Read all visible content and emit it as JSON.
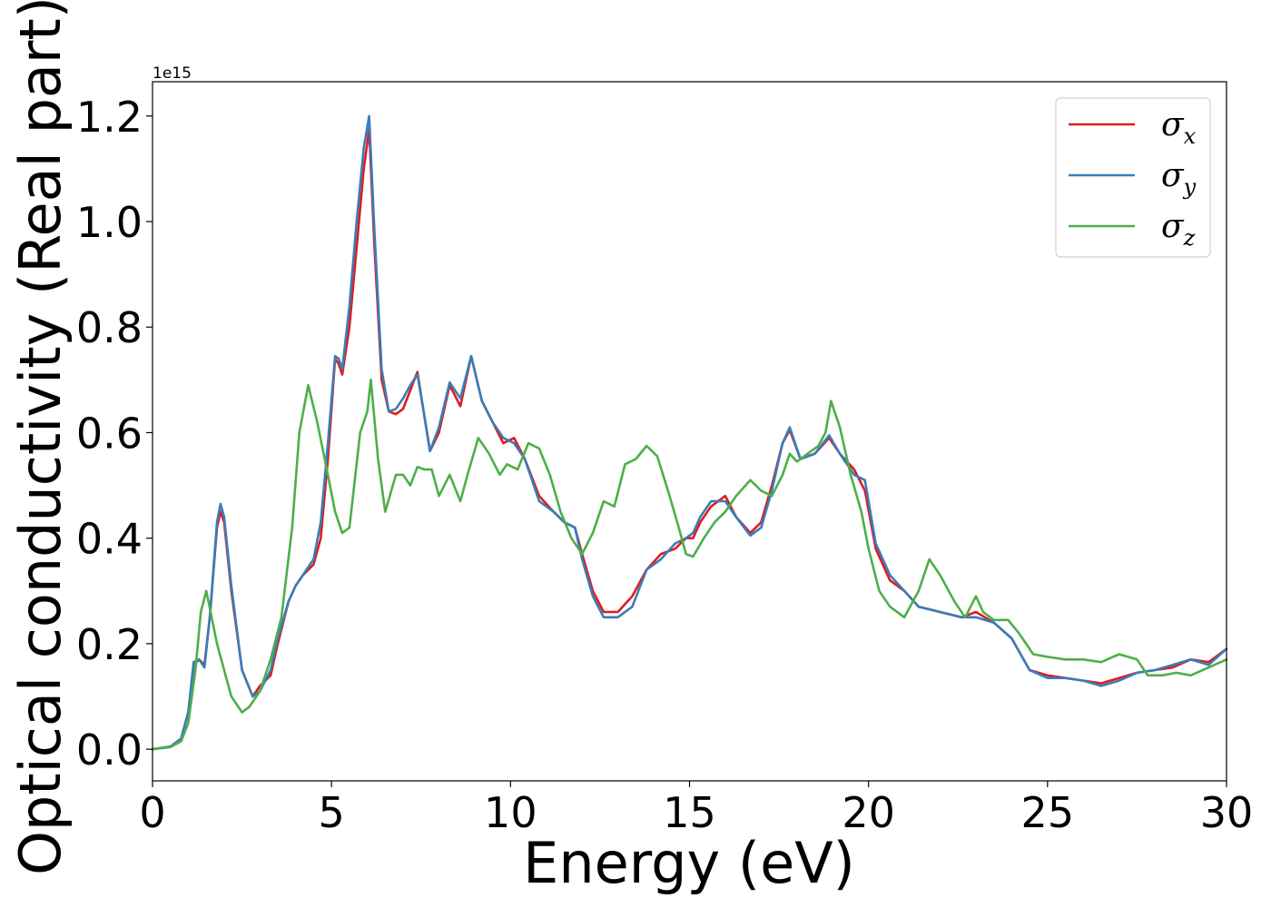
{
  "chart_data": {
    "type": "line",
    "xlabel": "Energy (eV)",
    "ylabel": "Optical conductivity (Real part)",
    "y_offset_label": "1e15",
    "xlim": [
      0,
      30
    ],
    "ylim": [
      -0.06,
      1.265
    ],
    "x_ticks": [
      0,
      5,
      10,
      15,
      20,
      25,
      30
    ],
    "x_tick_labels": [
      "0",
      "5",
      "10",
      "15",
      "20",
      "25",
      "30"
    ],
    "y_ticks": [
      0.0,
      0.2,
      0.4,
      0.6,
      0.8,
      1.0,
      1.2
    ],
    "y_tick_labels": [
      "0.0",
      "0.2",
      "0.4",
      "0.6",
      "0.8",
      "1.0",
      "1.2"
    ],
    "grid": false,
    "legend_position": "top-right",
    "series": [
      {
        "name": "σx",
        "symbol": "σ",
        "subscript": "x",
        "color": "#e41a1c",
        "points": [
          [
            0,
            0
          ],
          [
            0.5,
            0.005
          ],
          [
            0.8,
            0.02
          ],
          [
            1.0,
            0.07
          ],
          [
            1.15,
            0.16
          ],
          [
            1.3,
            0.17
          ],
          [
            1.45,
            0.16
          ],
          [
            1.6,
            0.25
          ],
          [
            1.8,
            0.42
          ],
          [
            1.9,
            0.45
          ],
          [
            2.0,
            0.43
          ],
          [
            2.2,
            0.3
          ],
          [
            2.5,
            0.15
          ],
          [
            2.8,
            0.1
          ],
          [
            3.0,
            0.12
          ],
          [
            3.3,
            0.14
          ],
          [
            3.5,
            0.2
          ],
          [
            3.8,
            0.28
          ],
          [
            4.0,
            0.31
          ],
          [
            4.2,
            0.33
          ],
          [
            4.5,
            0.35
          ],
          [
            4.7,
            0.4
          ],
          [
            4.9,
            0.55
          ],
          [
            5.1,
            0.74
          ],
          [
            5.2,
            0.73
          ],
          [
            5.3,
            0.71
          ],
          [
            5.5,
            0.8
          ],
          [
            5.7,
            0.95
          ],
          [
            5.9,
            1.1
          ],
          [
            6.05,
            1.175
          ],
          [
            6.2,
            0.95
          ],
          [
            6.4,
            0.7
          ],
          [
            6.6,
            0.64
          ],
          [
            6.8,
            0.635
          ],
          [
            7.0,
            0.645
          ],
          [
            7.2,
            0.68
          ],
          [
            7.4,
            0.715
          ],
          [
            7.55,
            0.65
          ],
          [
            7.75,
            0.565
          ],
          [
            8.0,
            0.6
          ],
          [
            8.3,
            0.69
          ],
          [
            8.6,
            0.65
          ],
          [
            8.9,
            0.745
          ],
          [
            9.2,
            0.66
          ],
          [
            9.5,
            0.62
          ],
          [
            9.8,
            0.58
          ],
          [
            10.1,
            0.59
          ],
          [
            10.4,
            0.55
          ],
          [
            10.8,
            0.48
          ],
          [
            11.2,
            0.45
          ],
          [
            11.5,
            0.43
          ],
          [
            11.8,
            0.42
          ],
          [
            12.0,
            0.37
          ],
          [
            12.3,
            0.3
          ],
          [
            12.6,
            0.26
          ],
          [
            13.0,
            0.26
          ],
          [
            13.4,
            0.29
          ],
          [
            13.8,
            0.34
          ],
          [
            14.2,
            0.37
          ],
          [
            14.6,
            0.38
          ],
          [
            14.9,
            0.4
          ],
          [
            15.1,
            0.4
          ],
          [
            15.3,
            0.43
          ],
          [
            15.6,
            0.46
          ],
          [
            16.0,
            0.48
          ],
          [
            16.3,
            0.44
          ],
          [
            16.7,
            0.41
          ],
          [
            17.0,
            0.43
          ],
          [
            17.3,
            0.5
          ],
          [
            17.6,
            0.58
          ],
          [
            17.8,
            0.605
          ],
          [
            18.1,
            0.55
          ],
          [
            18.5,
            0.56
          ],
          [
            18.9,
            0.59
          ],
          [
            19.2,
            0.56
          ],
          [
            19.6,
            0.53
          ],
          [
            19.9,
            0.49
          ],
          [
            20.2,
            0.38
          ],
          [
            20.6,
            0.32
          ],
          [
            21.0,
            0.3
          ],
          [
            21.4,
            0.27
          ],
          [
            22.0,
            0.26
          ],
          [
            22.6,
            0.25
          ],
          [
            23.0,
            0.26
          ],
          [
            23.5,
            0.24
          ],
          [
            24.0,
            0.21
          ],
          [
            24.5,
            0.15
          ],
          [
            25.0,
            0.14
          ],
          [
            25.5,
            0.135
          ],
          [
            26.0,
            0.13
          ],
          [
            26.5,
            0.125
          ],
          [
            27.0,
            0.135
          ],
          [
            27.5,
            0.145
          ],
          [
            28.0,
            0.15
          ],
          [
            28.5,
            0.155
          ],
          [
            29.0,
            0.17
          ],
          [
            29.5,
            0.165
          ],
          [
            30.0,
            0.19
          ]
        ]
      },
      {
        "name": "σy",
        "symbol": "σ",
        "subscript": "y",
        "color": "#377eb8",
        "points": [
          [
            0,
            0
          ],
          [
            0.5,
            0.005
          ],
          [
            0.8,
            0.02
          ],
          [
            1.0,
            0.07
          ],
          [
            1.15,
            0.165
          ],
          [
            1.3,
            0.17
          ],
          [
            1.45,
            0.155
          ],
          [
            1.6,
            0.25
          ],
          [
            1.8,
            0.43
          ],
          [
            1.9,
            0.465
          ],
          [
            2.0,
            0.44
          ],
          [
            2.2,
            0.31
          ],
          [
            2.5,
            0.15
          ],
          [
            2.8,
            0.1
          ],
          [
            3.0,
            0.11
          ],
          [
            3.3,
            0.15
          ],
          [
            3.5,
            0.21
          ],
          [
            3.8,
            0.28
          ],
          [
            4.0,
            0.31
          ],
          [
            4.2,
            0.33
          ],
          [
            4.5,
            0.36
          ],
          [
            4.7,
            0.43
          ],
          [
            4.9,
            0.58
          ],
          [
            5.1,
            0.745
          ],
          [
            5.2,
            0.74
          ],
          [
            5.3,
            0.72
          ],
          [
            5.5,
            0.84
          ],
          [
            5.7,
            1.0
          ],
          [
            5.9,
            1.14
          ],
          [
            6.05,
            1.2
          ],
          [
            6.2,
            0.98
          ],
          [
            6.4,
            0.72
          ],
          [
            6.6,
            0.64
          ],
          [
            6.8,
            0.645
          ],
          [
            7.0,
            0.665
          ],
          [
            7.2,
            0.69
          ],
          [
            7.4,
            0.71
          ],
          [
            7.55,
            0.65
          ],
          [
            7.75,
            0.565
          ],
          [
            8.0,
            0.61
          ],
          [
            8.3,
            0.695
          ],
          [
            8.6,
            0.665
          ],
          [
            8.9,
            0.745
          ],
          [
            9.2,
            0.66
          ],
          [
            9.5,
            0.62
          ],
          [
            9.8,
            0.59
          ],
          [
            10.1,
            0.58
          ],
          [
            10.4,
            0.55
          ],
          [
            10.8,
            0.47
          ],
          [
            11.2,
            0.45
          ],
          [
            11.5,
            0.43
          ],
          [
            11.8,
            0.42
          ],
          [
            12.0,
            0.36
          ],
          [
            12.3,
            0.29
          ],
          [
            12.6,
            0.25
          ],
          [
            13.0,
            0.25
          ],
          [
            13.4,
            0.27
          ],
          [
            13.8,
            0.34
          ],
          [
            14.2,
            0.36
          ],
          [
            14.6,
            0.39
          ],
          [
            14.9,
            0.4
          ],
          [
            15.1,
            0.41
          ],
          [
            15.3,
            0.44
          ],
          [
            15.6,
            0.47
          ],
          [
            16.0,
            0.47
          ],
          [
            16.3,
            0.44
          ],
          [
            16.7,
            0.405
          ],
          [
            17.0,
            0.42
          ],
          [
            17.3,
            0.49
          ],
          [
            17.6,
            0.58
          ],
          [
            17.8,
            0.61
          ],
          [
            18.1,
            0.55
          ],
          [
            18.5,
            0.56
          ],
          [
            18.9,
            0.595
          ],
          [
            19.2,
            0.56
          ],
          [
            19.6,
            0.52
          ],
          [
            19.9,
            0.51
          ],
          [
            20.2,
            0.39
          ],
          [
            20.6,
            0.33
          ],
          [
            21.0,
            0.3
          ],
          [
            21.4,
            0.27
          ],
          [
            22.0,
            0.26
          ],
          [
            22.6,
            0.25
          ],
          [
            23.0,
            0.25
          ],
          [
            23.5,
            0.24
          ],
          [
            24.0,
            0.21
          ],
          [
            24.5,
            0.15
          ],
          [
            25.0,
            0.135
          ],
          [
            25.5,
            0.135
          ],
          [
            26.0,
            0.13
          ],
          [
            26.5,
            0.12
          ],
          [
            27.0,
            0.13
          ],
          [
            27.5,
            0.145
          ],
          [
            28.0,
            0.15
          ],
          [
            28.5,
            0.16
          ],
          [
            29.0,
            0.17
          ],
          [
            29.5,
            0.16
          ],
          [
            30.0,
            0.19
          ]
        ]
      },
      {
        "name": "σz",
        "symbol": "σ",
        "subscript": "z",
        "color": "#4daf4a",
        "points": [
          [
            0,
            0
          ],
          [
            0.5,
            0.004
          ],
          [
            0.8,
            0.015
          ],
          [
            1.0,
            0.05
          ],
          [
            1.2,
            0.15
          ],
          [
            1.35,
            0.26
          ],
          [
            1.5,
            0.3
          ],
          [
            1.65,
            0.25
          ],
          [
            1.8,
            0.2
          ],
          [
            2.0,
            0.15
          ],
          [
            2.2,
            0.1
          ],
          [
            2.5,
            0.07
          ],
          [
            2.7,
            0.08
          ],
          [
            3.0,
            0.11
          ],
          [
            3.3,
            0.17
          ],
          [
            3.6,
            0.25
          ],
          [
            3.9,
            0.42
          ],
          [
            4.1,
            0.6
          ],
          [
            4.35,
            0.69
          ],
          [
            4.6,
            0.62
          ],
          [
            4.9,
            0.52
          ],
          [
            5.1,
            0.45
          ],
          [
            5.3,
            0.41
          ],
          [
            5.5,
            0.42
          ],
          [
            5.8,
            0.6
          ],
          [
            6.0,
            0.64
          ],
          [
            6.1,
            0.7
          ],
          [
            6.3,
            0.55
          ],
          [
            6.5,
            0.45
          ],
          [
            6.8,
            0.52
          ],
          [
            7.0,
            0.52
          ],
          [
            7.2,
            0.5
          ],
          [
            7.4,
            0.535
          ],
          [
            7.6,
            0.53
          ],
          [
            7.8,
            0.53
          ],
          [
            8.0,
            0.48
          ],
          [
            8.3,
            0.52
          ],
          [
            8.6,
            0.47
          ],
          [
            8.8,
            0.52
          ],
          [
            9.1,
            0.59
          ],
          [
            9.4,
            0.56
          ],
          [
            9.7,
            0.52
          ],
          [
            9.9,
            0.54
          ],
          [
            10.2,
            0.53
          ],
          [
            10.5,
            0.58
          ],
          [
            10.8,
            0.57
          ],
          [
            11.1,
            0.52
          ],
          [
            11.4,
            0.45
          ],
          [
            11.7,
            0.4
          ],
          [
            12.0,
            0.37
          ],
          [
            12.3,
            0.41
          ],
          [
            12.6,
            0.47
          ],
          [
            12.9,
            0.46
          ],
          [
            13.2,
            0.54
          ],
          [
            13.5,
            0.55
          ],
          [
            13.8,
            0.575
          ],
          [
            14.1,
            0.555
          ],
          [
            14.4,
            0.49
          ],
          [
            14.7,
            0.42
          ],
          [
            14.9,
            0.37
          ],
          [
            15.1,
            0.365
          ],
          [
            15.4,
            0.4
          ],
          [
            15.7,
            0.43
          ],
          [
            16.0,
            0.45
          ],
          [
            16.3,
            0.48
          ],
          [
            16.7,
            0.51
          ],
          [
            17.0,
            0.49
          ],
          [
            17.3,
            0.48
          ],
          [
            17.6,
            0.52
          ],
          [
            17.8,
            0.56
          ],
          [
            18.0,
            0.545
          ],
          [
            18.3,
            0.56
          ],
          [
            18.6,
            0.575
          ],
          [
            18.8,
            0.6
          ],
          [
            18.95,
            0.66
          ],
          [
            19.2,
            0.61
          ],
          [
            19.5,
            0.52
          ],
          [
            19.8,
            0.45
          ],
          [
            20.0,
            0.38
          ],
          [
            20.3,
            0.3
          ],
          [
            20.6,
            0.27
          ],
          [
            21.0,
            0.25
          ],
          [
            21.4,
            0.3
          ],
          [
            21.7,
            0.36
          ],
          [
            22.0,
            0.33
          ],
          [
            22.4,
            0.28
          ],
          [
            22.7,
            0.25
          ],
          [
            23.0,
            0.29
          ],
          [
            23.2,
            0.26
          ],
          [
            23.5,
            0.245
          ],
          [
            23.9,
            0.245
          ],
          [
            24.2,
            0.22
          ],
          [
            24.6,
            0.18
          ],
          [
            25.0,
            0.175
          ],
          [
            25.5,
            0.17
          ],
          [
            26.0,
            0.17
          ],
          [
            26.5,
            0.165
          ],
          [
            27.0,
            0.18
          ],
          [
            27.5,
            0.17
          ],
          [
            27.8,
            0.14
          ],
          [
            28.2,
            0.14
          ],
          [
            28.6,
            0.145
          ],
          [
            29.0,
            0.14
          ],
          [
            29.5,
            0.155
          ],
          [
            30.0,
            0.17
          ]
        ]
      }
    ]
  }
}
